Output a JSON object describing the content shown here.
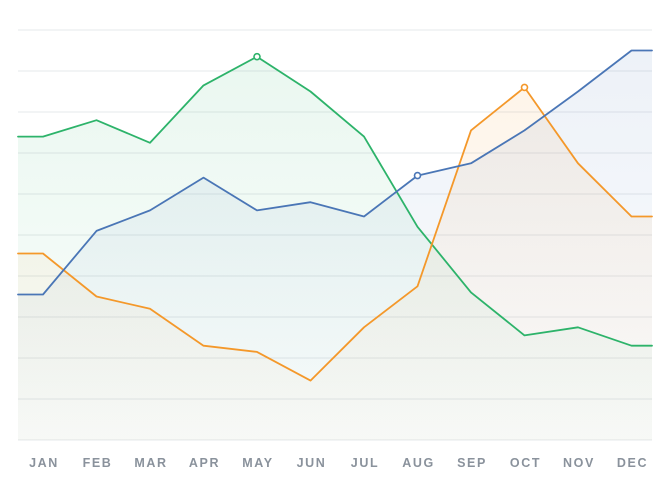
{
  "chart_data": {
    "type": "line",
    "title": "",
    "xlabel": "",
    "ylabel": "",
    "categories": [
      "JAN",
      "FEB",
      "MAR",
      "APR",
      "MAY",
      "JUN",
      "JUL",
      "AUG",
      "SEP",
      "OCT",
      "NOV",
      "DEC"
    ],
    "x_extends_to_edges": true,
    "ylim": [
      0,
      10
    ],
    "y_tick_labels_shown": false,
    "grid": {
      "horizontal": true,
      "vertical": false,
      "count": 11
    },
    "legend": "none",
    "area_fill": true,
    "series": [
      {
        "color": "#2db36a",
        "values": [
          7.4,
          7.8,
          7.25,
          8.65,
          9.35,
          8.5,
          7.4,
          5.2,
          3.6,
          2.55,
          2.75,
          2.3
        ],
        "marker_index": 4
      },
      {
        "color": "#f4982a",
        "values": [
          4.55,
          3.5,
          3.2,
          2.3,
          2.15,
          1.45,
          2.75,
          3.75,
          7.55,
          8.6,
          6.75,
          5.45
        ],
        "marker_index": 9
      },
      {
        "color": "#4a76b6",
        "values": [
          3.55,
          5.1,
          5.6,
          6.4,
          5.6,
          5.8,
          5.45,
          6.45,
          6.75,
          7.55,
          8.5,
          9.5
        ],
        "marker_index": 7
      }
    ]
  }
}
